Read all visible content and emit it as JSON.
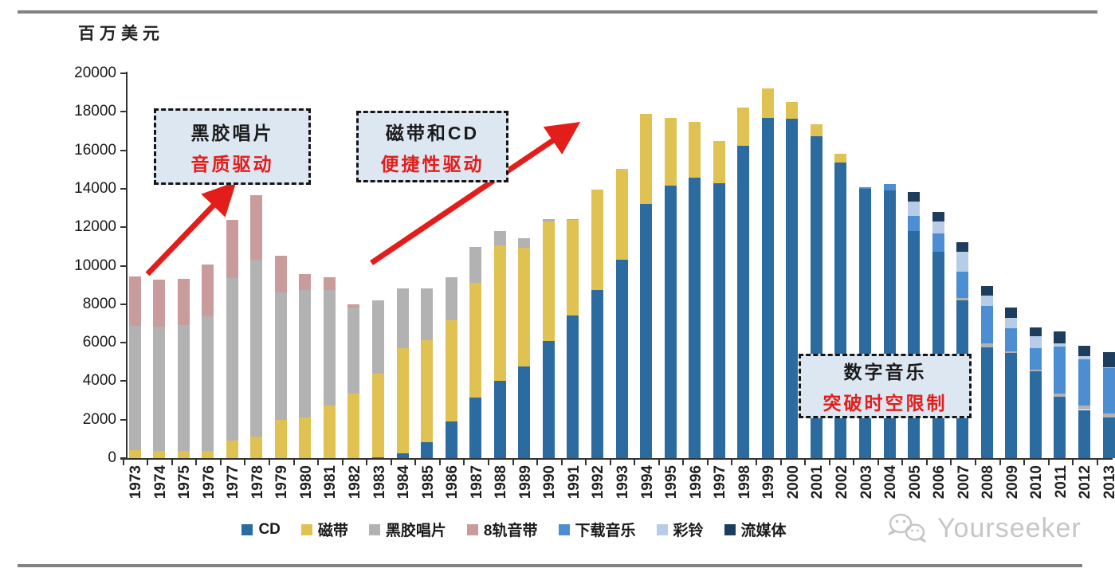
{
  "page": {
    "unit_label": "百万美元",
    "watermark": "Yourseeker"
  },
  "annotations": [
    {
      "line1": "黑胶唱片",
      "line2": "音质驱动",
      "text_color": "#1a1a1a",
      "accent_color": "#e31d1a"
    },
    {
      "line1": "磁带和CD",
      "line2": "便捷性驱动",
      "text_color": "#1a1a1a",
      "accent_color": "#e31d1a"
    },
    {
      "line1": "数字音乐",
      "line2": "突破时空限制",
      "text_color": "#1a1a1a",
      "accent_color": "#e31d1a"
    }
  ],
  "arrow_color": "#e31d1a",
  "chart_data": {
    "type": "bar",
    "stacked": true,
    "title": "",
    "ylabel": "百万美元",
    "xlabel": "",
    "ylim": [
      0,
      20000
    ],
    "ytick_step": 2000,
    "grid": false,
    "legend_position": "bottom",
    "categories": [
      "1973",
      "1974",
      "1975",
      "1976",
      "1977",
      "1978",
      "1979",
      "1980",
      "1981",
      "1982",
      "1983",
      "1984",
      "1985",
      "1986",
      "1987",
      "1988",
      "1989",
      "1990",
      "1991",
      "1992",
      "1993",
      "1994",
      "1995",
      "1996",
      "1997",
      "1998",
      "1999",
      "2000",
      "2001",
      "2002",
      "2003",
      "2004",
      "2005",
      "2006",
      "2007",
      "2008",
      "2009",
      "2010",
      "2011",
      "2012",
      "2013"
    ],
    "series": [
      {
        "name": "CD",
        "color": "#2c6ba0",
        "values": [
          0,
          0,
          0,
          0,
          0,
          0,
          0,
          0,
          0,
          0,
          40,
          230,
          840,
          1920,
          3135,
          4000,
          4775,
          6105,
          7405,
          8730,
          10310,
          13195,
          14155,
          14570,
          14295,
          16220,
          17690,
          17640,
          16730,
          15355,
          13990,
          13920,
          11815,
          10725,
          8180,
          5775,
          5465,
          4515,
          3200,
          2505,
          2100
        ]
      },
      {
        "name": "磁带",
        "color": "#dfc252",
        "values": [
          410,
          385,
          385,
          390,
          895,
          1100,
          2000,
          2130,
          2750,
          3370,
          4330,
          5475,
          5305,
          5235,
          5980,
          7045,
          6155,
          6210,
          4985,
          5220,
          4740,
          4675,
          3510,
          2885,
          2200,
          1995,
          1530,
          850,
          620,
          480,
          0,
          0,
          0,
          0,
          0,
          0,
          0,
          0,
          0,
          0,
          0
        ]
      },
      {
        "name": "黑胶唱片",
        "color": "#b2b2b2",
        "values": [
          6465,
          6450,
          6530,
          6965,
          8480,
          9210,
          6600,
          6600,
          6005,
          4440,
          3810,
          3095,
          2685,
          2240,
          1860,
          770,
          480,
          100,
          50,
          0,
          0,
          0,
          0,
          0,
          0,
          0,
          0,
          0,
          0,
          0,
          0,
          0,
          0,
          0,
          140,
          205,
          100,
          90,
          140,
          210,
          210
        ]
      },
      {
        "name": "8轨音带",
        "color": "#c99b9b",
        "values": [
          2570,
          2445,
          2395,
          2705,
          3000,
          3365,
          1900,
          825,
          660,
          190,
          0,
          0,
          0,
          0,
          0,
          0,
          0,
          0,
          0,
          0,
          0,
          0,
          0,
          0,
          0,
          0,
          0,
          0,
          0,
          0,
          0,
          0,
          0,
          0,
          0,
          0,
          0,
          0,
          0,
          0,
          0
        ]
      },
      {
        "name": "下载音乐",
        "color": "#4d8ed2",
        "values": [
          0,
          0,
          0,
          0,
          0,
          0,
          0,
          0,
          0,
          0,
          0,
          0,
          0,
          0,
          0,
          0,
          0,
          0,
          0,
          0,
          0,
          0,
          0,
          0,
          0,
          0,
          0,
          0,
          0,
          0,
          100,
          310,
          760,
          960,
          1375,
          1925,
          1170,
          1100,
          2440,
          2430,
          2360
        ]
      },
      {
        "name": "彩铃",
        "color": "#b7cce6",
        "values": [
          0,
          0,
          0,
          0,
          0,
          0,
          0,
          0,
          0,
          0,
          0,
          0,
          0,
          0,
          0,
          0,
          0,
          0,
          0,
          0,
          0,
          0,
          0,
          0,
          0,
          0,
          0,
          0,
          0,
          0,
          0,
          0,
          760,
          620,
          1030,
          550,
          550,
          620,
          200,
          150,
          60
        ]
      },
      {
        "name": "流媒体",
        "color": "#1d3d5c",
        "values": [
          0,
          0,
          0,
          0,
          0,
          0,
          0,
          0,
          0,
          0,
          0,
          0,
          0,
          0,
          0,
          0,
          0,
          0,
          0,
          0,
          0,
          0,
          0,
          0,
          0,
          0,
          0,
          0,
          0,
          0,
          0,
          0,
          480,
          480,
          480,
          480,
          550,
          480,
          620,
          550,
          770
        ]
      }
    ]
  }
}
